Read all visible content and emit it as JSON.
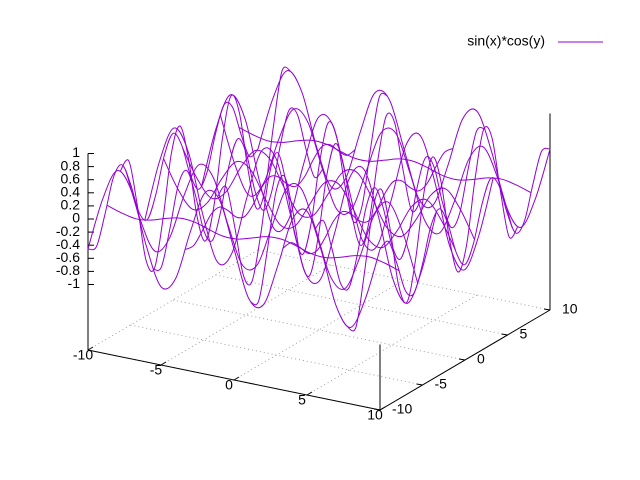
{
  "chart_data": {
    "type": "surface",
    "series": [
      {
        "name": "sin(x)*cos(y)",
        "color": "#9400d3",
        "samples": [
          -10,
          -9,
          -8,
          -7,
          -6,
          -5,
          -4,
          -3,
          -2,
          -1,
          0,
          1,
          2,
          3,
          4,
          5,
          6,
          7,
          8,
          9,
          10
        ],
        "isolines": [
          -10,
          -7.778,
          -5.556,
          -3.333,
          -1.111,
          1.111,
          3.333,
          5.556,
          7.778,
          10
        ],
        "rows": [
          [
            -0.456,
            0.346,
            0.83,
            0.551,
            -0.234,
            -0.805,
            -0.635,
            0.118,
            0.763,
            0.706,
            0,
            -0.706,
            -0.763,
            -0.118,
            0.635,
            0.805,
            0.234,
            -0.551,
            -0.83,
            -0.346,
            0.456
          ],
          [
            0.041,
            -0.031,
            -0.075,
            -0.05,
            0.021,
            0.073,
            0.058,
            -0.011,
            -0.069,
            -0.064,
            0,
            0.064,
            0.069,
            0.011,
            -0.058,
            -0.073,
            -0.021,
            0.05,
            0.075,
            0.031,
            -0.041
          ],
          [
            0.406,
            -0.308,
            -0.739,
            -0.491,
            0.208,
            0.716,
            0.565,
            -0.105,
            -0.679,
            -0.628,
            0,
            0.628,
            0.679,
            0.105,
            -0.565,
            -0.716,
            -0.208,
            0.491,
            0.739,
            0.308,
            -0.406
          ],
          [
            -0.534,
            0.405,
            0.971,
            0.645,
            -0.274,
            -0.942,
            -0.743,
            0.138,
            0.893,
            0.826,
            0,
            -0.826,
            -0.893,
            -0.138,
            0.743,
            0.942,
            0.274,
            -0.645,
            -0.971,
            -0.405,
            0.534
          ],
          [
            0.242,
            -0.183,
            -0.439,
            -0.292,
            0.124,
            0.426,
            0.336,
            -0.063,
            -0.404,
            -0.373,
            0,
            0.373,
            0.404,
            0.063,
            -0.336,
            -0.426,
            -0.124,
            0.292,
            0.439,
            0.183,
            -0.242
          ],
          [
            0.242,
            -0.183,
            -0.439,
            -0.292,
            0.124,
            0.426,
            0.336,
            -0.063,
            -0.404,
            -0.373,
            0,
            0.373,
            0.404,
            0.063,
            -0.336,
            -0.426,
            -0.124,
            0.292,
            0.439,
            0.183,
            -0.242
          ],
          [
            -0.534,
            0.405,
            0.971,
            0.645,
            -0.274,
            -0.942,
            -0.743,
            0.138,
            0.893,
            0.826,
            0,
            -0.826,
            -0.893,
            -0.138,
            0.743,
            0.942,
            0.274,
            -0.645,
            -0.971,
            -0.405,
            0.534
          ],
          [
            0.406,
            -0.308,
            -0.739,
            -0.491,
            0.208,
            0.716,
            0.565,
            -0.105,
            -0.679,
            -0.628,
            0,
            0.628,
            0.679,
            0.105,
            -0.565,
            -0.716,
            -0.208,
            0.491,
            0.739,
            0.308,
            -0.406
          ],
          [
            0.041,
            -0.031,
            -0.075,
            -0.05,
            0.021,
            0.073,
            0.058,
            -0.011,
            -0.069,
            -0.064,
            0,
            0.064,
            0.069,
            0.011,
            -0.058,
            -0.073,
            -0.021,
            0.05,
            0.075,
            0.031,
            -0.041
          ],
          [
            -0.456,
            0.346,
            0.83,
            0.551,
            -0.234,
            -0.805,
            -0.635,
            0.118,
            0.763,
            0.706,
            0,
            -0.706,
            -0.763,
            -0.118,
            0.635,
            0.805,
            0.234,
            -0.551,
            -0.83,
            -0.346,
            0.456
          ]
        ],
        "cols": [
          [
            -0.456,
            -0.496,
            -0.079,
            0.41,
            0.522,
            0.154,
            -0.356,
            -0.539,
            -0.226,
            0.294,
            0.544,
            0.294,
            -0.226,
            -0.539,
            -0.356,
            0.154,
            0.522,
            0.41,
            -0.079,
            -0.496,
            -0.456
          ],
          [
            0.836,
            0.908,
            0.146,
            -0.752,
            -0.957,
            -0.283,
            0.652,
            0.987,
            0.415,
            -0.538,
            -0.997,
            -0.538,
            0.415,
            0.987,
            0.652,
            -0.283,
            -0.957,
            -0.752,
            0.146,
            0.908,
            0.836
          ],
          [
            -0.558,
            -0.606,
            -0.097,
            0.501,
            0.638,
            0.189,
            -0.435,
            -0.658,
            -0.277,
            0.359,
            0.665,
            0.359,
            -0.277,
            -0.658,
            -0.435,
            0.189,
            0.638,
            0.501,
            -0.097,
            -0.606,
            -0.558
          ],
          [
            -0.159,
            -0.173,
            -0.028,
            0.143,
            0.182,
            0.054,
            -0.124,
            -0.188,
            -0.079,
            0.103,
            0.19,
            0.103,
            -0.079,
            -0.188,
            -0.124,
            0.054,
            0.182,
            0.143,
            -0.028,
            -0.173,
            -0.159
          ],
          [
            0.752,
            0.816,
            0.131,
            -0.676,
            -0.86,
            -0.254,
            0.586,
            0.887,
            0.373,
            -0.484,
            -0.896,
            -0.484,
            0.373,
            0.887,
            0.586,
            -0.254,
            -0.86,
            -0.676,
            0.131,
            0.816,
            0.752
          ],
          [
            -0.752,
            -0.816,
            -0.131,
            0.676,
            0.86,
            0.254,
            -0.586,
            -0.887,
            -0.373,
            0.484,
            0.896,
            0.484,
            -0.373,
            -0.887,
            -0.586,
            0.254,
            0.86,
            0.676,
            -0.131,
            -0.816,
            -0.752
          ],
          [
            0.159,
            0.173,
            0.028,
            -0.143,
            -0.182,
            -0.054,
            0.124,
            0.188,
            0.079,
            -0.103,
            -0.19,
            -0.103,
            0.079,
            0.188,
            0.124,
            -0.054,
            -0.182,
            -0.143,
            0.028,
            0.173,
            0.159
          ],
          [
            0.558,
            0.606,
            0.097,
            -0.501,
            -0.638,
            -0.189,
            0.435,
            0.658,
            0.277,
            -0.359,
            -0.665,
            -0.359,
            0.277,
            0.658,
            0.435,
            -0.189,
            -0.638,
            -0.501,
            0.097,
            0.606,
            0.558
          ],
          [
            -0.836,
            -0.908,
            -0.146,
            0.752,
            0.957,
            0.283,
            -0.652,
            -0.987,
            -0.415,
            0.538,
            0.997,
            0.538,
            -0.415,
            -0.987,
            -0.652,
            0.283,
            0.957,
            0.752,
            -0.146,
            -0.908,
            -0.836
          ],
          [
            0.456,
            0.496,
            0.079,
            -0.41,
            -0.522,
            -0.154,
            0.356,
            0.539,
            0.226,
            -0.294,
            -0.544,
            -0.294,
            0.226,
            0.539,
            0.356,
            -0.154,
            -0.522,
            -0.41,
            0.079,
            0.496,
            0.456
          ]
        ]
      }
    ],
    "xlim": [
      -10,
      10
    ],
    "ylim": [
      -10,
      10
    ],
    "zlim": [
      -1,
      1
    ],
    "xticks": [
      -10,
      -5,
      0,
      5,
      10
    ],
    "yticks": [
      -10,
      -5,
      0,
      5,
      10
    ],
    "zticks": [
      -1,
      -0.8,
      -0.6,
      -0.4,
      -0.2,
      0,
      0.2,
      0.4,
      0.6,
      0.8,
      1
    ],
    "grid": true,
    "legend": "top right"
  }
}
